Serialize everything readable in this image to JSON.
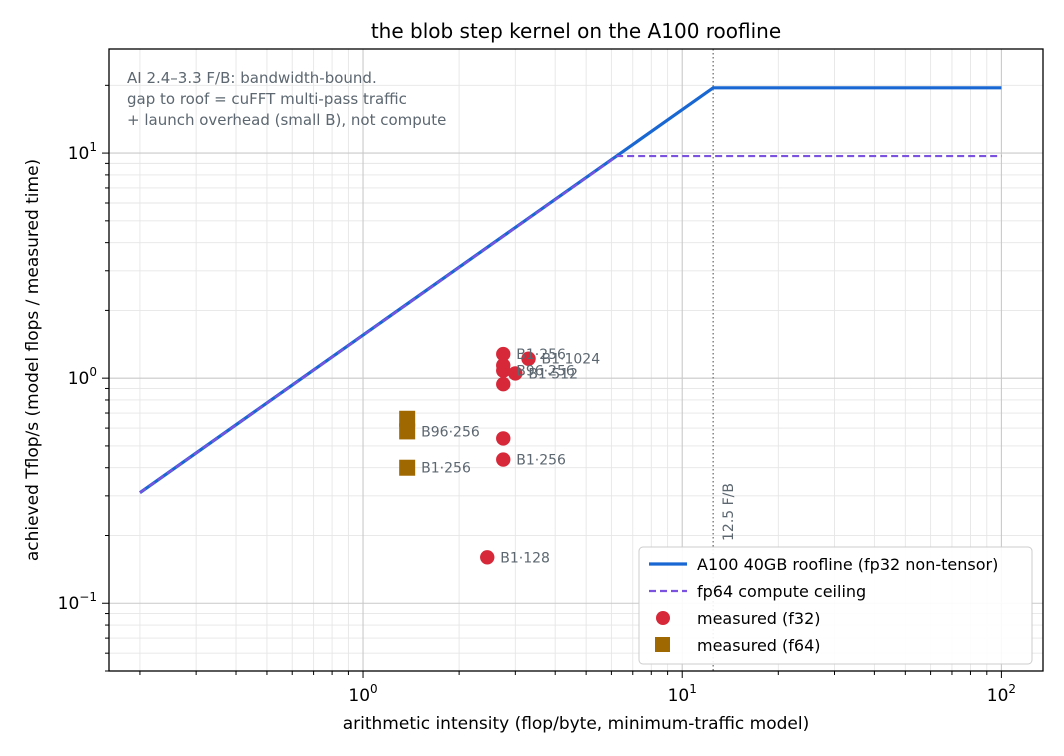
{
  "chart_data": {
    "type": "scatter",
    "title": "the blob step kernel on the A100 roofline",
    "xlabel": "arithmetic intensity (flop/byte, minimum-traffic model)",
    "ylabel": "achieved Tflop/s (model flops / measured time)",
    "xscale": "log",
    "yscale": "log",
    "xlim": [
      0.16,
      135
    ],
    "ylim": [
      0.05,
      29
    ],
    "grid": true,
    "x_ticks": [
      {
        "value": 1,
        "base": "10",
        "exp": "0"
      },
      {
        "value": 10,
        "base": "10",
        "exp": "1"
      },
      {
        "value": 100,
        "base": "10",
        "exp": "2"
      }
    ],
    "y_ticks": [
      {
        "value": 0.1,
        "base": "10",
        "exp": "−1"
      },
      {
        "value": 1,
        "base": "10",
        "exp": "0"
      },
      {
        "value": 10,
        "base": "10",
        "exp": "1"
      }
    ],
    "annotation": [
      "AI 2.4–3.3 F/B: bandwidth-bound.",
      "gap to roof = cuFFT multi-pass traffic",
      "+ launch overhead (small B), not compute"
    ],
    "ridge": {
      "x": 12.5,
      "label": "12.5 F/B"
    },
    "legend_position": "lower right",
    "colors": {
      "roofline": "#1967d2",
      "fp64_ceiling": "#7b52e0",
      "f32": "#d62839",
      "f64": "#a06800",
      "ridge": "#666666",
      "annotation": "#5c6770"
    },
    "series": [
      {
        "name": "A100 40GB roofline (fp32 non-tensor)",
        "kind": "line",
        "x": [
          0.2,
          12.5,
          100
        ],
        "y": [
          0.31,
          19.5,
          19.5
        ]
      },
      {
        "name": "fp64 compute ceiling",
        "kind": "dashed-line",
        "x": [
          0.2,
          6.25,
          100
        ],
        "y": [
          0.31,
          9.7,
          9.7
        ]
      },
      {
        "name": "measured (f32)",
        "kind": "scatter",
        "points": [
          {
            "x": 2.75,
            "y": 1.28,
            "label": "B1·256"
          },
          {
            "x": 3.3,
            "y": 1.22,
            "label": "B1·1024"
          },
          {
            "x": 2.75,
            "y": 1.14,
            "label": ""
          },
          {
            "x": 2.75,
            "y": 1.08,
            "label": "B96·256"
          },
          {
            "x": 3.0,
            "y": 1.05,
            "label": "B1·512"
          },
          {
            "x": 2.75,
            "y": 0.94,
            "label": ""
          },
          {
            "x": 2.75,
            "y": 0.54,
            "label": ""
          },
          {
            "x": 2.75,
            "y": 0.435,
            "label": "B1·256"
          },
          {
            "x": 2.45,
            "y": 0.16,
            "label": "B1·128"
          }
        ]
      },
      {
        "name": "measured (f64)",
        "kind": "scatter",
        "points": [
          {
            "x": 1.375,
            "y": 0.66,
            "label": ""
          },
          {
            "x": 1.375,
            "y": 0.58,
            "label": "B96·256"
          },
          {
            "x": 1.375,
            "y": 0.4,
            "label": "B1·256"
          }
        ]
      }
    ]
  }
}
